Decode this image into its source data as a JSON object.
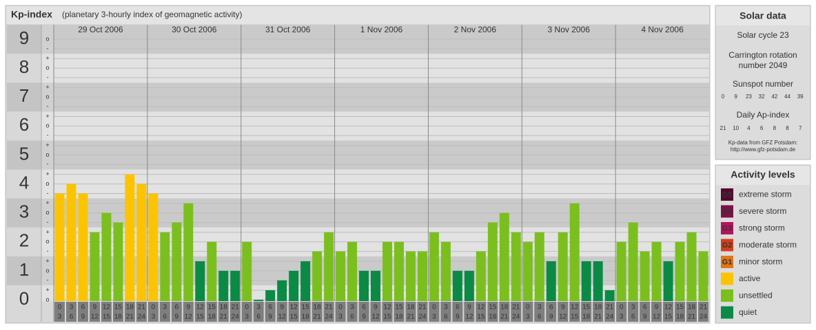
{
  "chart_data": {
    "type": "bar",
    "title": "Kp-index",
    "subtitle": "(planetary 3-hourly index of geomagnetic activity)",
    "days": [
      "29 Oct 2006",
      "30 Oct 2006",
      "31 Oct 2006",
      "1 Nov 2006",
      "2 Nov 2006",
      "3 Nov 2006",
      "4 Nov 2006"
    ],
    "hours": [
      {
        "from": "0",
        "to": "3"
      },
      {
        "from": "3",
        "to": "6"
      },
      {
        "from": "6",
        "to": "9"
      },
      {
        "from": "9",
        "to": "12"
      },
      {
        "from": "12",
        "to": "15"
      },
      {
        "from": "15",
        "to": "18"
      },
      {
        "from": "18",
        "to": "21"
      },
      {
        "from": "21",
        "to": "24"
      }
    ],
    "values": [
      3.67,
      4,
      3.67,
      2.33,
      3,
      2.67,
      4.33,
      4,
      3.67,
      2.33,
      2.67,
      3.33,
      1.33,
      2,
      1,
      1,
      2,
      0,
      0.33,
      0.67,
      1,
      1.33,
      1.67,
      2.33,
      1.67,
      2,
      1,
      1,
      2,
      2,
      1.67,
      1.67,
      2.33,
      2,
      1,
      1,
      1.67,
      2.67,
      3,
      2.33,
      2,
      2.33,
      1.33,
      2.33,
      3.33,
      1.33,
      1.33,
      0.33,
      2,
      2.67,
      1.67,
      2,
      1.33,
      2,
      2.33,
      1.67
    ],
    "colors": [
      "#fcc400",
      "#fcc400",
      "#fcc400",
      "#7bbf1f",
      "#7bbf1f",
      "#7bbf1f",
      "#fcc400",
      "#fcc400",
      "#fcc400",
      "#7bbf1f",
      "#7bbf1f",
      "#7bbf1f",
      "#0b8a46",
      "#7bbf1f",
      "#0b8a46",
      "#0b8a46",
      "#7bbf1f",
      "#0b8a46",
      "#0b8a46",
      "#0b8a46",
      "#0b8a46",
      "#0b8a46",
      "#7bbf1f",
      "#7bbf1f",
      "#7bbf1f",
      "#7bbf1f",
      "#0b8a46",
      "#0b8a46",
      "#7bbf1f",
      "#7bbf1f",
      "#7bbf1f",
      "#7bbf1f",
      "#7bbf1f",
      "#7bbf1f",
      "#0b8a46",
      "#0b8a46",
      "#7bbf1f",
      "#7bbf1f",
      "#7bbf1f",
      "#7bbf1f",
      "#7bbf1f",
      "#7bbf1f",
      "#0b8a46",
      "#7bbf1f",
      "#7bbf1f",
      "#0b8a46",
      "#0b8a46",
      "#0b8a46",
      "#7bbf1f",
      "#7bbf1f",
      "#7bbf1f",
      "#7bbf1f",
      "#0b8a46",
      "#7bbf1f",
      "#7bbf1f",
      "#7bbf1f"
    ],
    "ylim": [
      0,
      9.5
    ],
    "yticks": [
      0,
      1,
      2,
      3,
      4,
      5,
      6,
      7,
      8,
      9
    ],
    "minor_yticks": [
      {
        "value": 0,
        "label": "o"
      },
      {
        "value": 0.33,
        "label": "+"
      },
      {
        "value": 0.67,
        "label": "-"
      },
      {
        "value": 1,
        "label": "o"
      },
      {
        "value": 1.33,
        "label": "+"
      },
      {
        "value": 1.67,
        "label": "-"
      },
      {
        "value": 2,
        "label": "o"
      },
      {
        "value": 2.33,
        "label": "+"
      },
      {
        "value": 2.67,
        "label": "-"
      },
      {
        "value": 3,
        "label": "o"
      },
      {
        "value": 3.33,
        "label": "+"
      },
      {
        "value": 3.67,
        "label": "-"
      },
      {
        "value": 4,
        "label": "o"
      },
      {
        "value": 4.33,
        "label": "+"
      },
      {
        "value": 4.67,
        "label": "-"
      },
      {
        "value": 5,
        "label": "o"
      },
      {
        "value": 5.33,
        "label": "+"
      },
      {
        "value": 5.67,
        "label": "-"
      },
      {
        "value": 6,
        "label": "o"
      },
      {
        "value": 6.33,
        "label": "+"
      },
      {
        "value": 6.67,
        "label": "-"
      },
      {
        "value": 7,
        "label": "o"
      },
      {
        "value": 7.33,
        "label": "+"
      },
      {
        "value": 7.67,
        "label": "-"
      },
      {
        "value": 8,
        "label": "o"
      },
      {
        "value": 8.33,
        "label": "+"
      },
      {
        "value": 8.67,
        "label": "-"
      },
      {
        "value": 9,
        "label": "o"
      }
    ],
    "grid": true,
    "solar": {
      "title": "Solar data",
      "cycle": "Solar cycle 23",
      "carrington": [
        "Carrington rotation",
        "number 2049"
      ],
      "sunspot_title": "Sunspot number",
      "sunspot": [
        0,
        9,
        23,
        32,
        42,
        44,
        39
      ],
      "ap_title": "Daily Ap-index",
      "ap": [
        21,
        10,
        4,
        6,
        8,
        8,
        7
      ],
      "source": [
        "Kp-data from GFZ Potsdam:",
        "http://www.gfz-potsdam.de"
      ]
    },
    "legend": {
      "title": "Activity levels",
      "items": [
        {
          "badge": "G5",
          "name": "extreme storm",
          "color": "#520a2c"
        },
        {
          "badge": "G4",
          "name": "severe storm",
          "color": "#7c1248"
        },
        {
          "badge": "G3",
          "name": "strong storm",
          "color": "#b4145e"
        },
        {
          "badge": "G2",
          "name": "moderate storm",
          "color": "#d2401c"
        },
        {
          "badge": "G1",
          "name": "minor storm",
          "color": "#e0761a"
        },
        {
          "name": "active",
          "color": "#fcc400"
        },
        {
          "name": "unsettled",
          "color": "#7bbf1f"
        },
        {
          "name": "quiet",
          "color": "#0b8a46"
        }
      ]
    }
  }
}
